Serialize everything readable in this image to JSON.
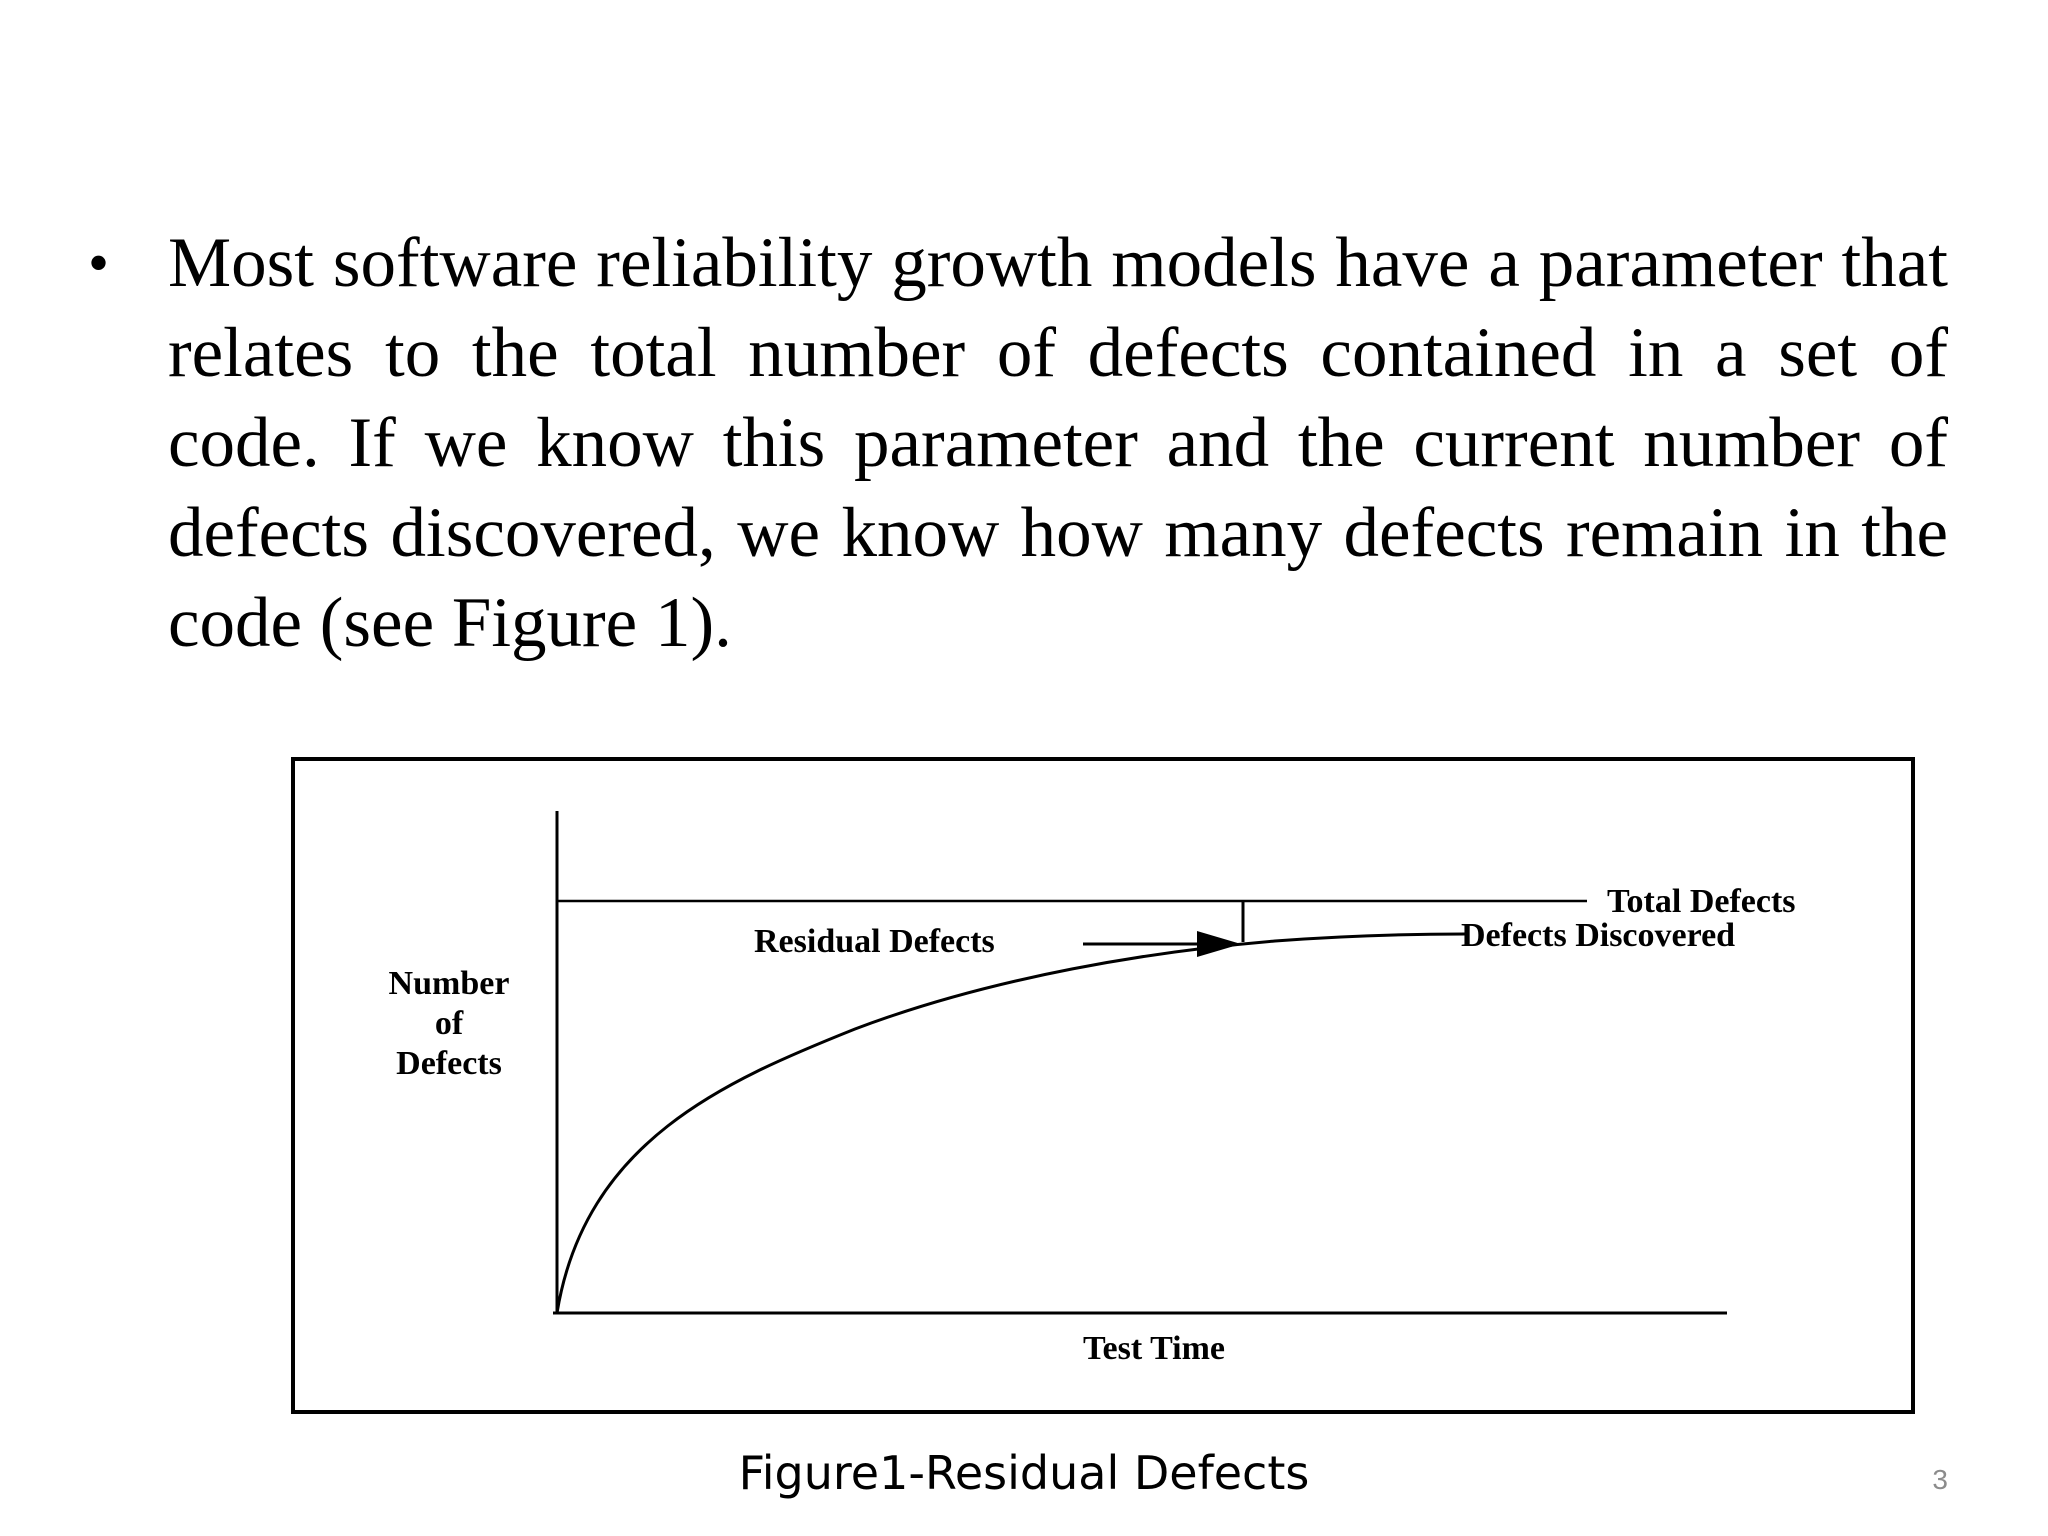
{
  "slide": {
    "bullet_symbol": "•",
    "bullet_text": "Most software reliability growth models have a parameter that relates to the total number of defects contained in a set of code. If we know this parameter and the current number of defects discovered, we know how many defects remain in the code (see Figure 1).",
    "caption": "Figure1-Residual Defects",
    "page_number": "3"
  },
  "diagram": {
    "y_axis_label_lines": [
      "Number",
      "of",
      "Defects"
    ],
    "x_axis_label": "Test Time",
    "total_defects_label": "Total Defects",
    "defects_discovered_label": "Defects Discovered",
    "residual_defects_label": "Residual Defects"
  }
}
